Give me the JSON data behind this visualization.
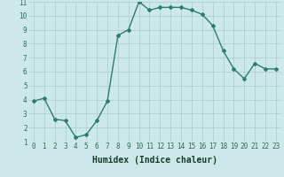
{
  "x": [
    0,
    1,
    2,
    3,
    4,
    5,
    6,
    7,
    8,
    9,
    10,
    11,
    12,
    13,
    14,
    15,
    16,
    17,
    18,
    19,
    20,
    21,
    22,
    23
  ],
  "y": [
    3.9,
    4.1,
    2.6,
    2.5,
    1.3,
    1.5,
    2.5,
    3.9,
    8.6,
    9.0,
    11.0,
    10.4,
    10.6,
    10.6,
    10.6,
    10.4,
    10.1,
    9.3,
    7.5,
    6.2,
    5.5,
    6.6,
    6.2,
    6.2
  ],
  "line_color": "#2e7d6e",
  "marker": "D",
  "marker_size": 2.0,
  "linewidth": 1.0,
  "xlabel": "Humidex (Indice chaleur)",
  "xlabel_fontsize": 7,
  "xlim": [
    -0.5,
    23.5
  ],
  "ylim": [
    1,
    11
  ],
  "yticks": [
    1,
    2,
    3,
    4,
    5,
    6,
    7,
    8,
    9,
    10,
    11
  ],
  "xticks": [
    0,
    1,
    2,
    3,
    4,
    5,
    6,
    7,
    8,
    9,
    10,
    11,
    12,
    13,
    14,
    15,
    16,
    17,
    18,
    19,
    20,
    21,
    22,
    23
  ],
  "bg_color": "#cce8e8",
  "grid_color": "#aacccc",
  "tick_fontsize": 5.5,
  "tick_color": "#2e6b5a",
  "xlabel_color": "#1a3a2a"
}
